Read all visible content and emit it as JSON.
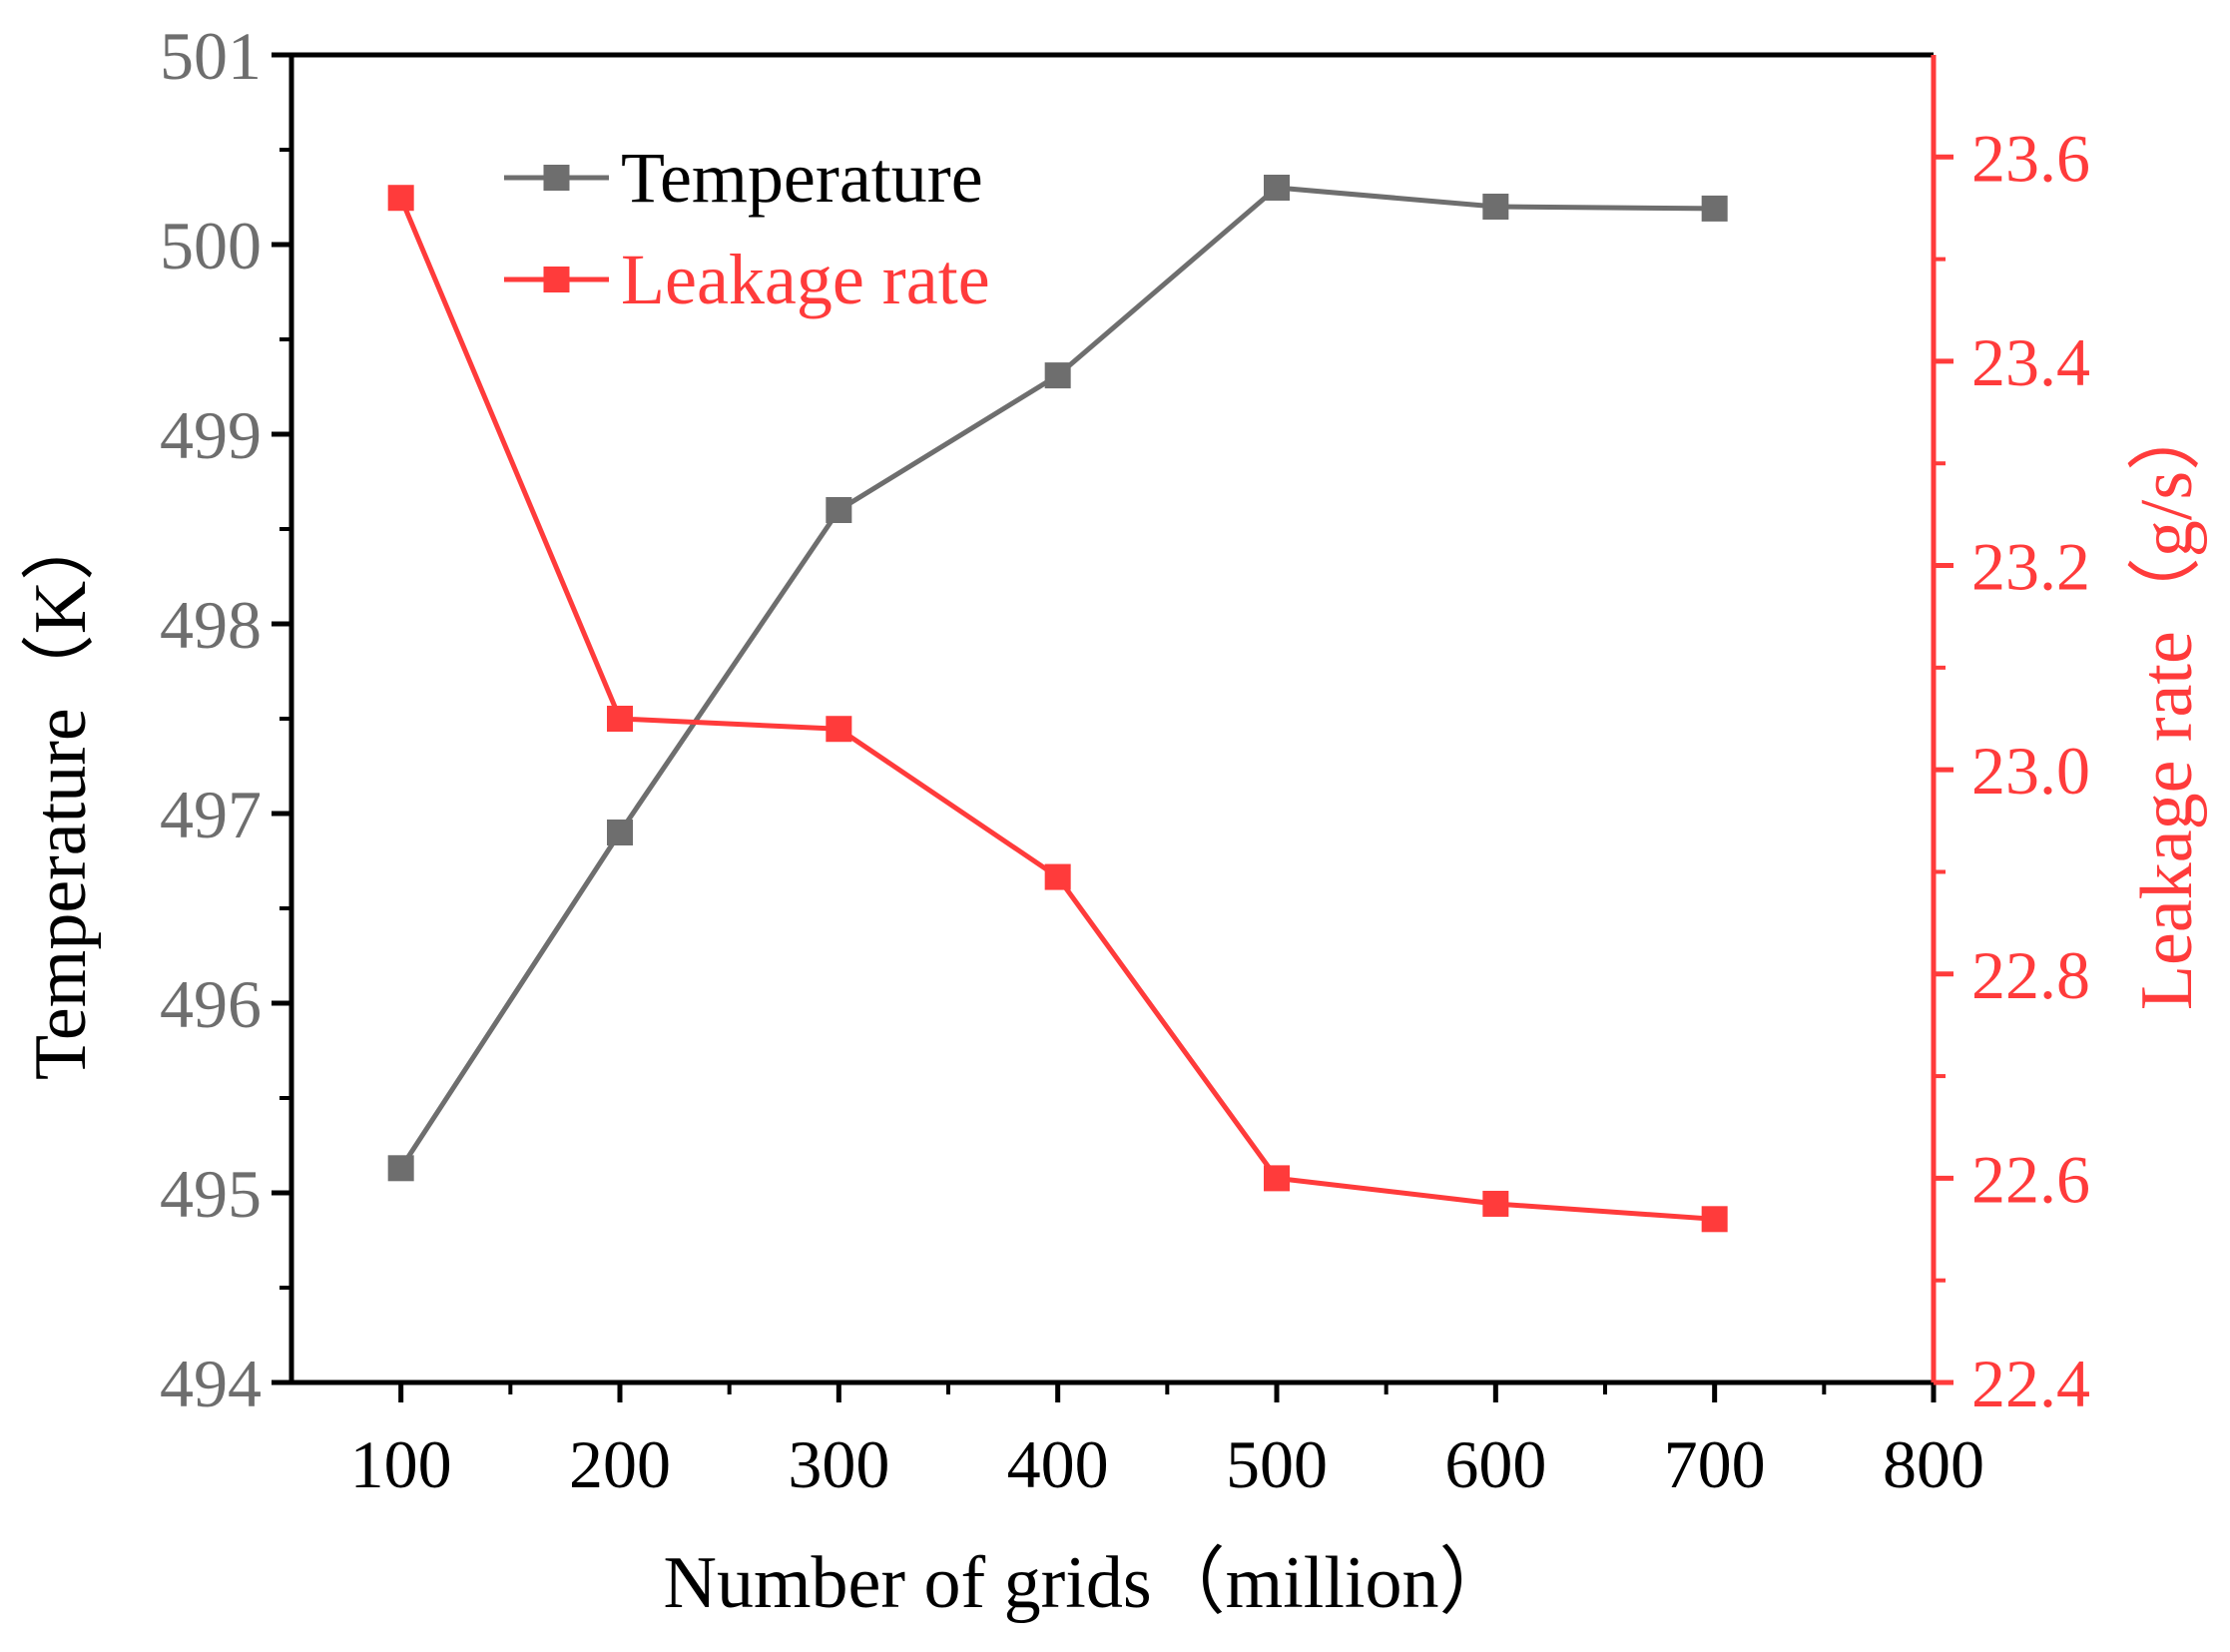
{
  "chart_data": {
    "type": "line",
    "title": "",
    "xlabel": "Number of grids（million）",
    "x": [
      100,
      200,
      300,
      400,
      500,
      600,
      700
    ],
    "xlim": [
      50,
      800
    ],
    "xticks": [
      "100",
      "200",
      "300",
      "400",
      "500",
      "600",
      "700",
      "800"
    ],
    "y_left": {
      "label": "Temperature（K）",
      "lim": [
        494,
        501
      ],
      "ticks": [
        "494",
        "495",
        "496",
        "497",
        "498",
        "499",
        "500",
        "501"
      ],
      "color": "#6e6e6e"
    },
    "y_right": {
      "label": "Leakage rate（g/s）",
      "lim": [
        22.4,
        23.7
      ],
      "ticks": [
        "22.4",
        "22.6",
        "22.8",
        "23.0",
        "23.2",
        "23.4",
        "23.6"
      ],
      "color": "#ff3b3b"
    },
    "series": [
      {
        "name": "Temperature",
        "axis": "left",
        "color": "#6e6e6e",
        "values": [
          495.13,
          496.9,
          498.6,
          499.31,
          500.3,
          500.2,
          500.19
        ]
      },
      {
        "name": "Leakage rate",
        "axis": "right",
        "color": "#ff3b3b",
        "values": [
          23.56,
          23.05,
          23.04,
          22.895,
          22.6,
          22.575,
          22.56
        ]
      }
    ],
    "legend": {
      "position": "top-left",
      "entries": [
        "Temperature",
        "Leakage rate"
      ]
    }
  }
}
